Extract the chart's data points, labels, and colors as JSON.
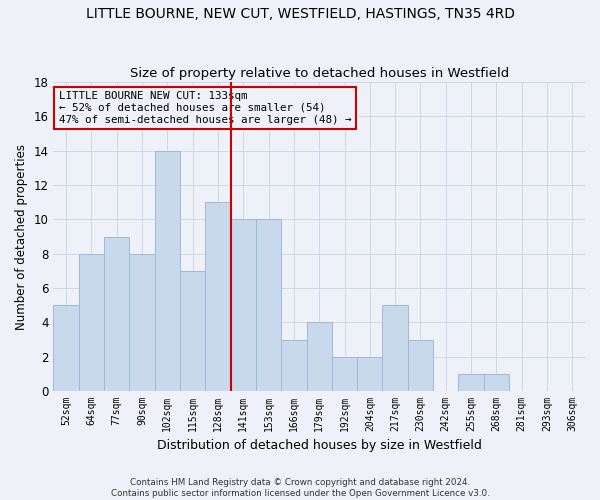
{
  "title": "LITTLE BOURNE, NEW CUT, WESTFIELD, HASTINGS, TN35 4RD",
  "subtitle": "Size of property relative to detached houses in Westfield",
  "xlabel": "Distribution of detached houses by size in Westfield",
  "ylabel": "Number of detached properties",
  "bin_labels": [
    "52sqm",
    "64sqm",
    "77sqm",
    "90sqm",
    "102sqm",
    "115sqm",
    "128sqm",
    "141sqm",
    "153sqm",
    "166sqm",
    "179sqm",
    "192sqm",
    "204sqm",
    "217sqm",
    "230sqm",
    "242sqm",
    "255sqm",
    "268sqm",
    "281sqm",
    "293sqm",
    "306sqm"
  ],
  "bar_heights": [
    5,
    8,
    9,
    8,
    14,
    7,
    11,
    10,
    10,
    3,
    4,
    2,
    2,
    5,
    3,
    0,
    1,
    1,
    0,
    0,
    0
  ],
  "bar_color": "#c9d9ec",
  "bar_edgecolor": "#a0b8d8",
  "grid_color": "#c8d4e4",
  "vline_x_index": 7,
  "vline_color": "#cc0000",
  "annotation_text": "LITTLE BOURNE NEW CUT: 133sqm\n← 52% of detached houses are smaller (54)\n47% of semi-detached houses are larger (48) →",
  "annotation_box_edgecolor": "#cc0000",
  "ylim": [
    0,
    18
  ],
  "yticks": [
    0,
    2,
    4,
    6,
    8,
    10,
    12,
    14,
    16,
    18
  ],
  "footer": "Contains HM Land Registry data © Crown copyright and database right 2024.\nContains public sector information licensed under the Open Government Licence v3.0.",
  "bg_color": "#eef2f8",
  "title_fontsize": 10,
  "subtitle_fontsize": 9.5,
  "xlabel_fontsize": 9,
  "ylabel_fontsize": 8.5
}
